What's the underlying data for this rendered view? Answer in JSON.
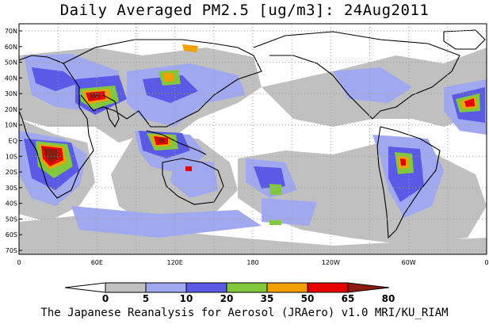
{
  "title": "Daily Averaged PM2.5 [ug/m3]: 24Aug2011",
  "footer": "The Japanese Reanalysis for Aerosol (JRAero) v1.0 MRI/KU_RIAM",
  "latitude_labels": [
    "70N",
    "60N",
    "50N",
    "40N",
    "30N",
    "20N",
    "10N",
    "EQ",
    "10S",
    "20S",
    "30S",
    "40S",
    "50S",
    "60S",
    "70S"
  ],
  "longitude_labels": [
    "0",
    "60E",
    "120E",
    "180",
    "120W",
    "60W",
    "0"
  ],
  "colorbar": {
    "bin_labels": [
      "0",
      "5",
      "10",
      "20",
      "35",
      "50",
      "65",
      "80"
    ],
    "colors": [
      "#ffffff",
      "#c0c0c0",
      "#a0a8f0",
      "#5a5ae6",
      "#82c83c",
      "#f0a000",
      "#e60000",
      "#8b1a10"
    ]
  },
  "map_colors": {
    "ocean": "#ffffff",
    "light": "#c0c0c0",
    "low": "#a0a8f0",
    "mid": "#5a5ae6",
    "green": "#82c83c",
    "orange": "#f0a000",
    "red": "#e60000",
    "dark": "#8b1a10",
    "coast": "#000000",
    "grid": "#a0a0a0"
  }
}
